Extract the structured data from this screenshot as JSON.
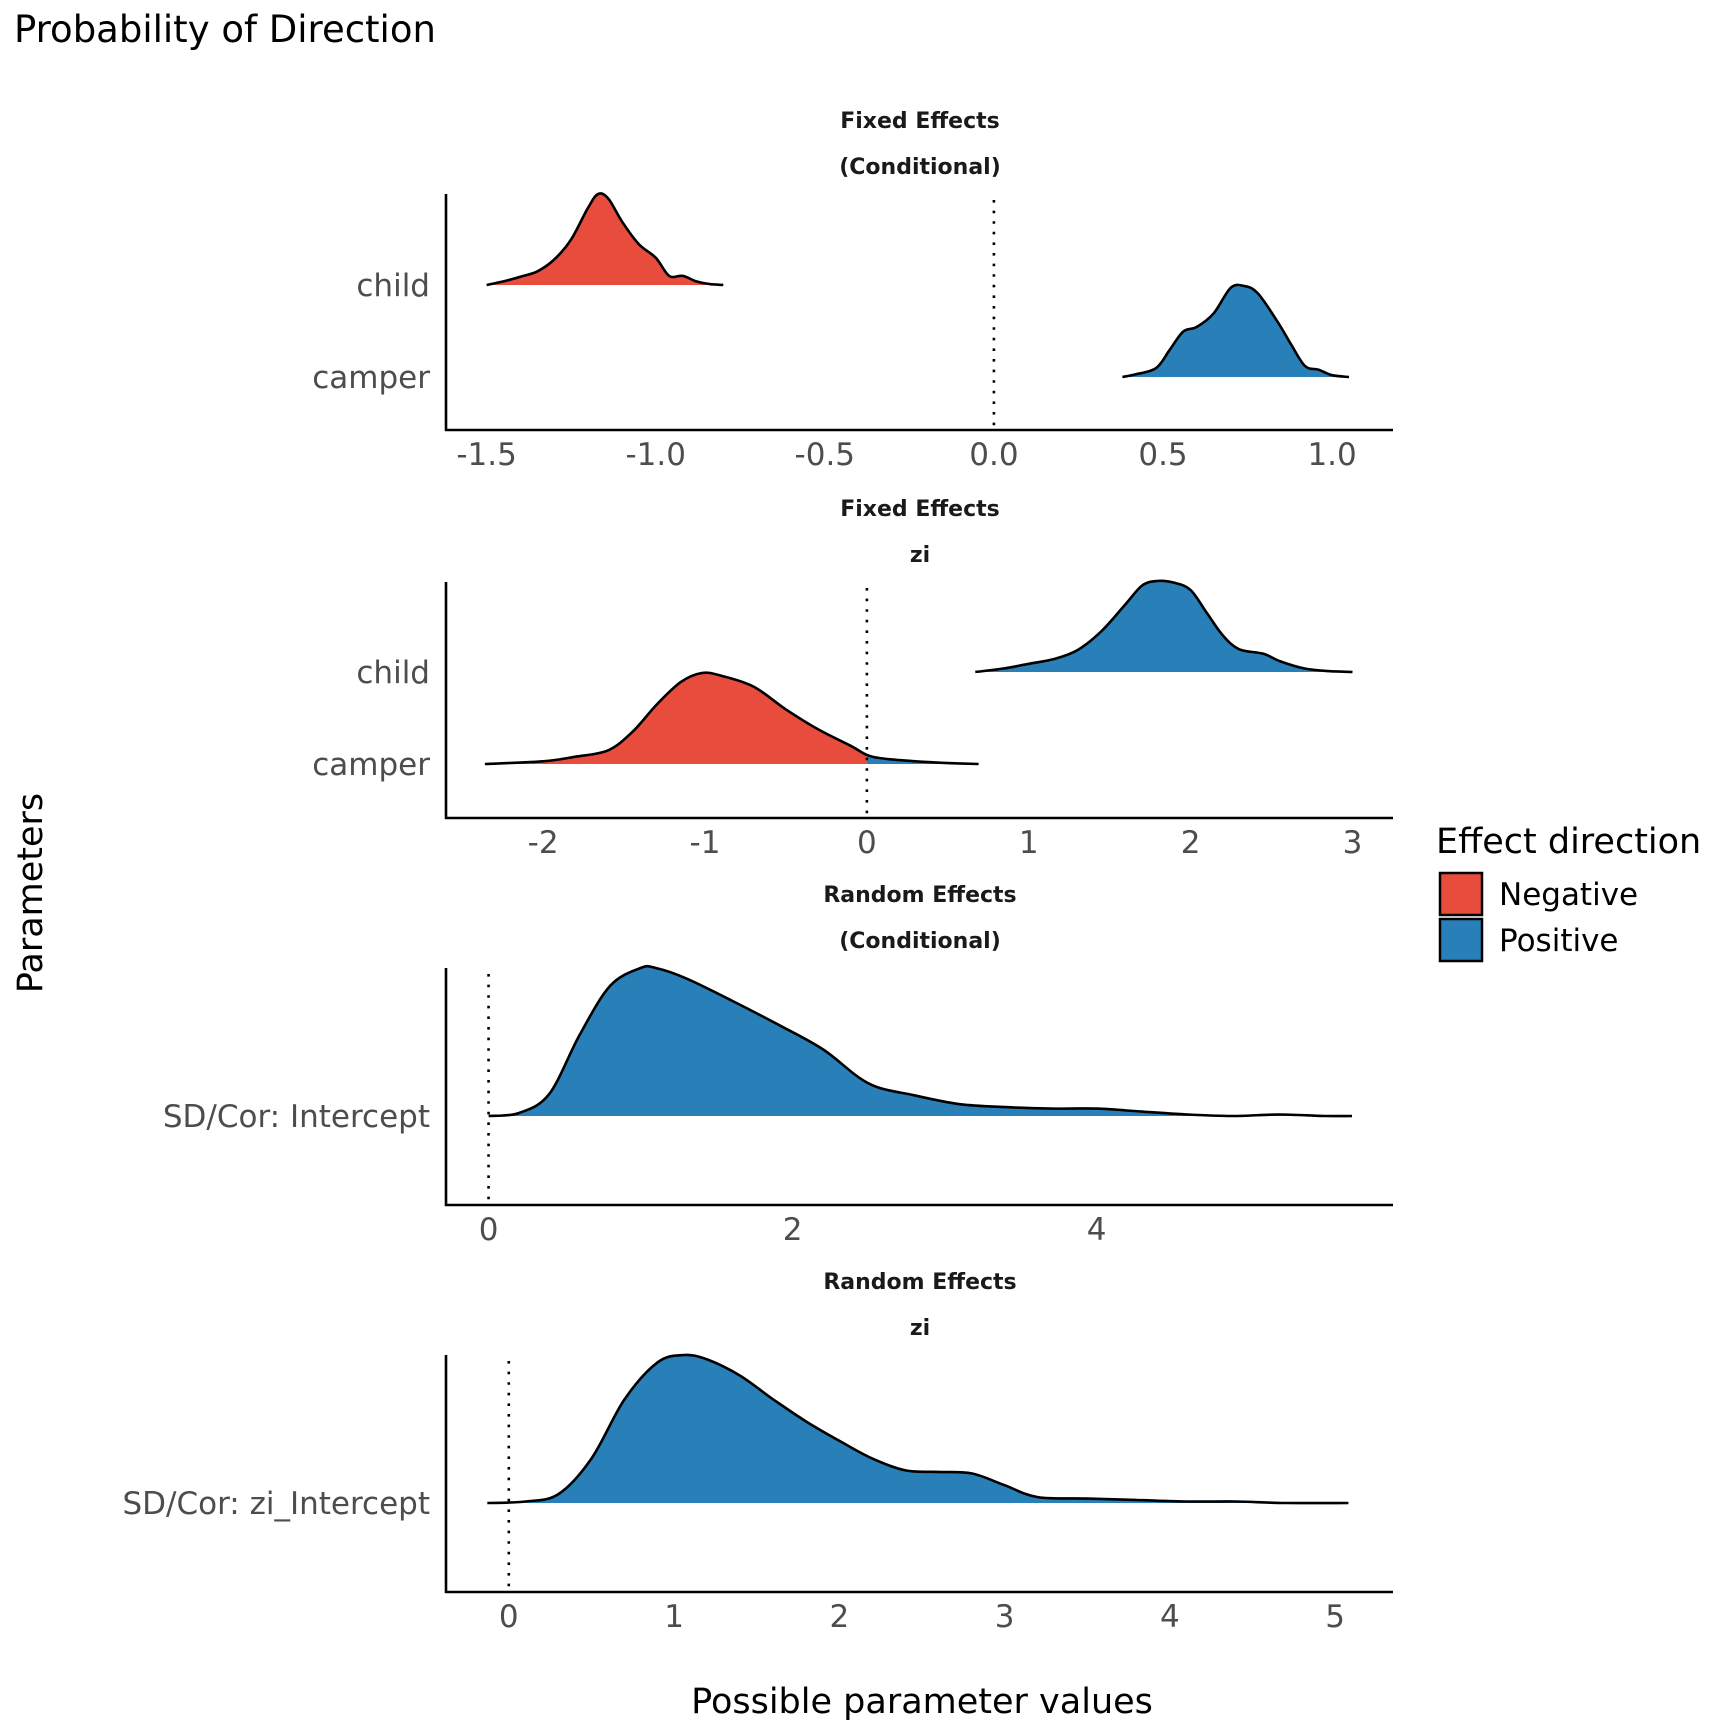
{
  "colors": {
    "negative": "#E74C3C",
    "positive": "#2980B9",
    "outline": "#000000"
  },
  "chart_data": {
    "type": "area",
    "subtype": "ridgeline-density",
    "title": "Probability of Direction",
    "xlabel": "Possible parameter values",
    "ylabel": "Parameters",
    "grid": false,
    "legend": {
      "title": "Effect direction",
      "position": "right",
      "entries": [
        {
          "label": "Negative",
          "color_key": "negative"
        },
        {
          "label": "Positive",
          "color_key": "positive"
        }
      ]
    },
    "panels": [
      {
        "strip": [
          "Fixed Effects",
          "(Conditional)"
        ],
        "xlim": [
          -1.62,
          1.18
        ],
        "ticks": [
          -1.5,
          -1.0,
          -0.5,
          0.0,
          0.5,
          1.0
        ],
        "tick_labels": [
          "-1.5",
          "-1.0",
          "-0.5",
          "0.0",
          "0.5",
          "1.0"
        ],
        "reference_line": 0,
        "rows": [
          "child",
          "camper"
        ],
        "densities": [
          {
            "parameter": "child",
            "x": [
              -1.5,
              -1.45,
              -1.4,
              -1.35,
              -1.3,
              -1.25,
              -1.2,
              -1.17,
              -1.14,
              -1.1,
              -1.05,
              -1.0,
              -0.96,
              -0.92,
              -0.88,
              -0.84,
              -0.8
            ],
            "y": [
              0.0,
              0.04,
              0.09,
              0.15,
              0.28,
              0.5,
              0.85,
              1.0,
              0.95,
              0.7,
              0.45,
              0.3,
              0.1,
              0.1,
              0.04,
              0.01,
              0.0
            ]
          },
          {
            "parameter": "camper",
            "x": [
              0.38,
              0.42,
              0.48,
              0.52,
              0.56,
              0.6,
              0.65,
              0.7,
              0.74,
              0.78,
              0.84,
              0.88,
              0.92,
              0.96,
              1.0,
              1.05
            ],
            "y": [
              0.0,
              0.03,
              0.1,
              0.3,
              0.5,
              0.55,
              0.7,
              0.98,
              1.0,
              0.92,
              0.6,
              0.35,
              0.12,
              0.08,
              0.02,
              0.0
            ]
          }
        ]
      },
      {
        "strip": [
          "Fixed Effects",
          "zi"
        ],
        "xlim": [
          -2.6,
          3.25
        ],
        "ticks": [
          -2,
          -1,
          0,
          1,
          2,
          3
        ],
        "tick_labels": [
          "-2",
          "-1",
          "0",
          "1",
          "2",
          "3"
        ],
        "reference_line": 0,
        "rows": [
          "child",
          "camper"
        ],
        "densities": [
          {
            "parameter": "child",
            "x": [
              0.67,
              0.85,
              1.0,
              1.15,
              1.3,
              1.45,
              1.6,
              1.7,
              1.79,
              1.9,
              2.0,
              2.1,
              2.2,
              2.3,
              2.45,
              2.55,
              2.7,
              2.85,
              3.0
            ],
            "y": [
              0.0,
              0.04,
              0.09,
              0.14,
              0.24,
              0.45,
              0.75,
              0.95,
              1.0,
              0.98,
              0.9,
              0.65,
              0.4,
              0.25,
              0.2,
              0.12,
              0.04,
              0.01,
              0.0
            ]
          },
          {
            "parameter": "camper",
            "x": [
              -2.36,
              -2.0,
              -1.8,
              -1.6,
              -1.45,
              -1.3,
              -1.15,
              -1.02,
              -0.9,
              -0.7,
              -0.5,
              -0.3,
              -0.1,
              0.0,
              0.1,
              0.3,
              0.5,
              0.69
            ],
            "y": [
              0.0,
              0.03,
              0.08,
              0.15,
              0.35,
              0.65,
              0.9,
              1.0,
              0.97,
              0.85,
              0.6,
              0.38,
              0.2,
              0.1,
              0.06,
              0.03,
              0.01,
              0.0
            ]
          }
        ]
      },
      {
        "strip": [
          "Random Effects",
          "(Conditional)"
        ],
        "xlim": [
          -0.28,
          5.95
        ],
        "ticks": [
          0,
          2,
          4
        ],
        "tick_labels": [
          "0",
          "2",
          "4"
        ],
        "reference_line": 0,
        "rows": [
          "SD/Cor:  Intercept"
        ],
        "densities": [
          {
            "parameter": "SD/Cor:  Intercept",
            "x": [
              0.0,
              0.2,
              0.4,
              0.6,
              0.8,
              1.0,
              1.1,
              1.3,
              1.6,
              1.9,
              2.2,
              2.5,
              2.8,
              3.1,
              3.4,
              3.7,
              4.0,
              4.3,
              4.6,
              4.9,
              5.2,
              5.5,
              5.68
            ],
            "y": [
              0.0,
              0.02,
              0.15,
              0.55,
              0.88,
              1.0,
              1.0,
              0.93,
              0.78,
              0.62,
              0.45,
              0.22,
              0.14,
              0.08,
              0.06,
              0.05,
              0.05,
              0.03,
              0.01,
              0.0,
              0.01,
              0.0,
              0.0
            ]
          }
        ]
      },
      {
        "strip": [
          "Random Effects",
          "zi"
        ],
        "xlim": [
          -0.38,
          5.35
        ],
        "ticks": [
          0,
          1,
          2,
          3,
          4,
          5
        ],
        "tick_labels": [
          "0",
          "1",
          "2",
          "3",
          "4",
          "5"
        ],
        "reference_line": 0,
        "rows": [
          "SD/Cor:  zi_Intercept"
        ],
        "densities": [
          {
            "parameter": "SD/Cor:  zi_Intercept",
            "x": [
              -0.13,
              0.1,
              0.3,
              0.5,
              0.7,
              0.9,
              1.06,
              1.2,
              1.4,
              1.6,
              1.8,
              2.0,
              2.2,
              2.4,
              2.6,
              2.8,
              3.0,
              3.2,
              3.5,
              3.8,
              4.1,
              4.4,
              4.7,
              5.08
            ],
            "y": [
              0.0,
              0.01,
              0.06,
              0.3,
              0.7,
              0.95,
              1.0,
              0.97,
              0.86,
              0.7,
              0.55,
              0.42,
              0.3,
              0.22,
              0.21,
              0.2,
              0.12,
              0.04,
              0.03,
              0.02,
              0.01,
              0.01,
              0.0,
              0.0
            ]
          }
        ]
      }
    ]
  }
}
